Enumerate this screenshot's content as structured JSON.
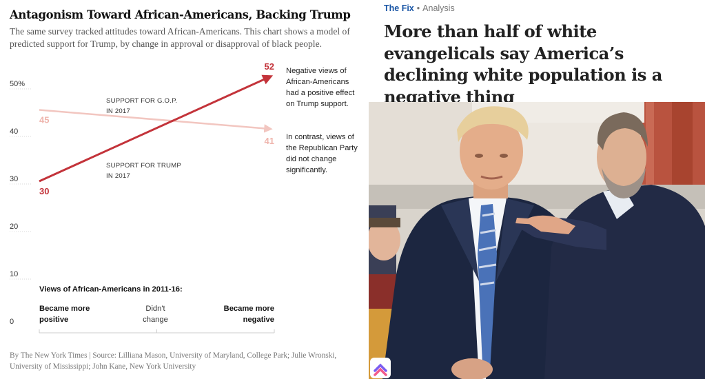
{
  "left_panel": {
    "title": "Antagonism Toward African-Americans, Backing Trump",
    "subtitle": "The same survey tracked attitudes toward African-Americans. This chart shows a model of predicted support for Trump, by change in approval or disapproval of black people.",
    "source": "By The New York Times | Source: Lilliana Mason, University of Maryland, College Park; Julie Wronski, University of Mississippi; John Kane, New York University"
  },
  "chart_data": {
    "type": "line",
    "ylim": [
      0,
      50
    ],
    "y_ticks": [
      {
        "value": 50,
        "label": "50%"
      },
      {
        "value": 40,
        "label": "40"
      },
      {
        "value": 30,
        "label": "30"
      },
      {
        "value": 20,
        "label": "20"
      },
      {
        "value": 10,
        "label": "10"
      },
      {
        "value": 0,
        "label": "0"
      }
    ],
    "xlabel": "Views of African-Americans in 2011-16:",
    "x_categories": [
      {
        "label_lines": [
          "Became more",
          "positive"
        ],
        "align": "start"
      },
      {
        "label_lines": [
          "Didn't",
          "change"
        ],
        "align": "middle"
      },
      {
        "label_lines": [
          "Became more",
          "negative"
        ],
        "align": "end"
      }
    ],
    "series": [
      {
        "name_lines": [
          "SUPPORT FOR G.O.P.",
          "IN 2017"
        ],
        "color": "#f2c6c0",
        "label_color": "#efb5ad",
        "values": [
          45,
          41
        ],
        "start_label": "45",
        "end_label": "41",
        "annotation_lines": [
          "In contrast, views of",
          "the Republican Party",
          "did not change",
          "significantly."
        ]
      },
      {
        "name_lines": [
          "SUPPORT FOR TRUMP",
          "IN 2017"
        ],
        "color": "#c3333a",
        "label_color": "#c3333a",
        "values": [
          30,
          52
        ],
        "start_label": "30",
        "end_label": "52",
        "annotation_lines": [
          "Negative views of",
          "African-Americans",
          "had a positive effect",
          "on Trump support."
        ]
      }
    ]
  },
  "right_panel": {
    "kicker_section": "The Fix",
    "kicker_separator": "•",
    "kicker_label": "Analysis",
    "headline": "More than half of white evangelicals say America’s declining white population is a negative thing",
    "colors": {
      "section": "#1955a5",
      "headline": "#222222"
    }
  }
}
